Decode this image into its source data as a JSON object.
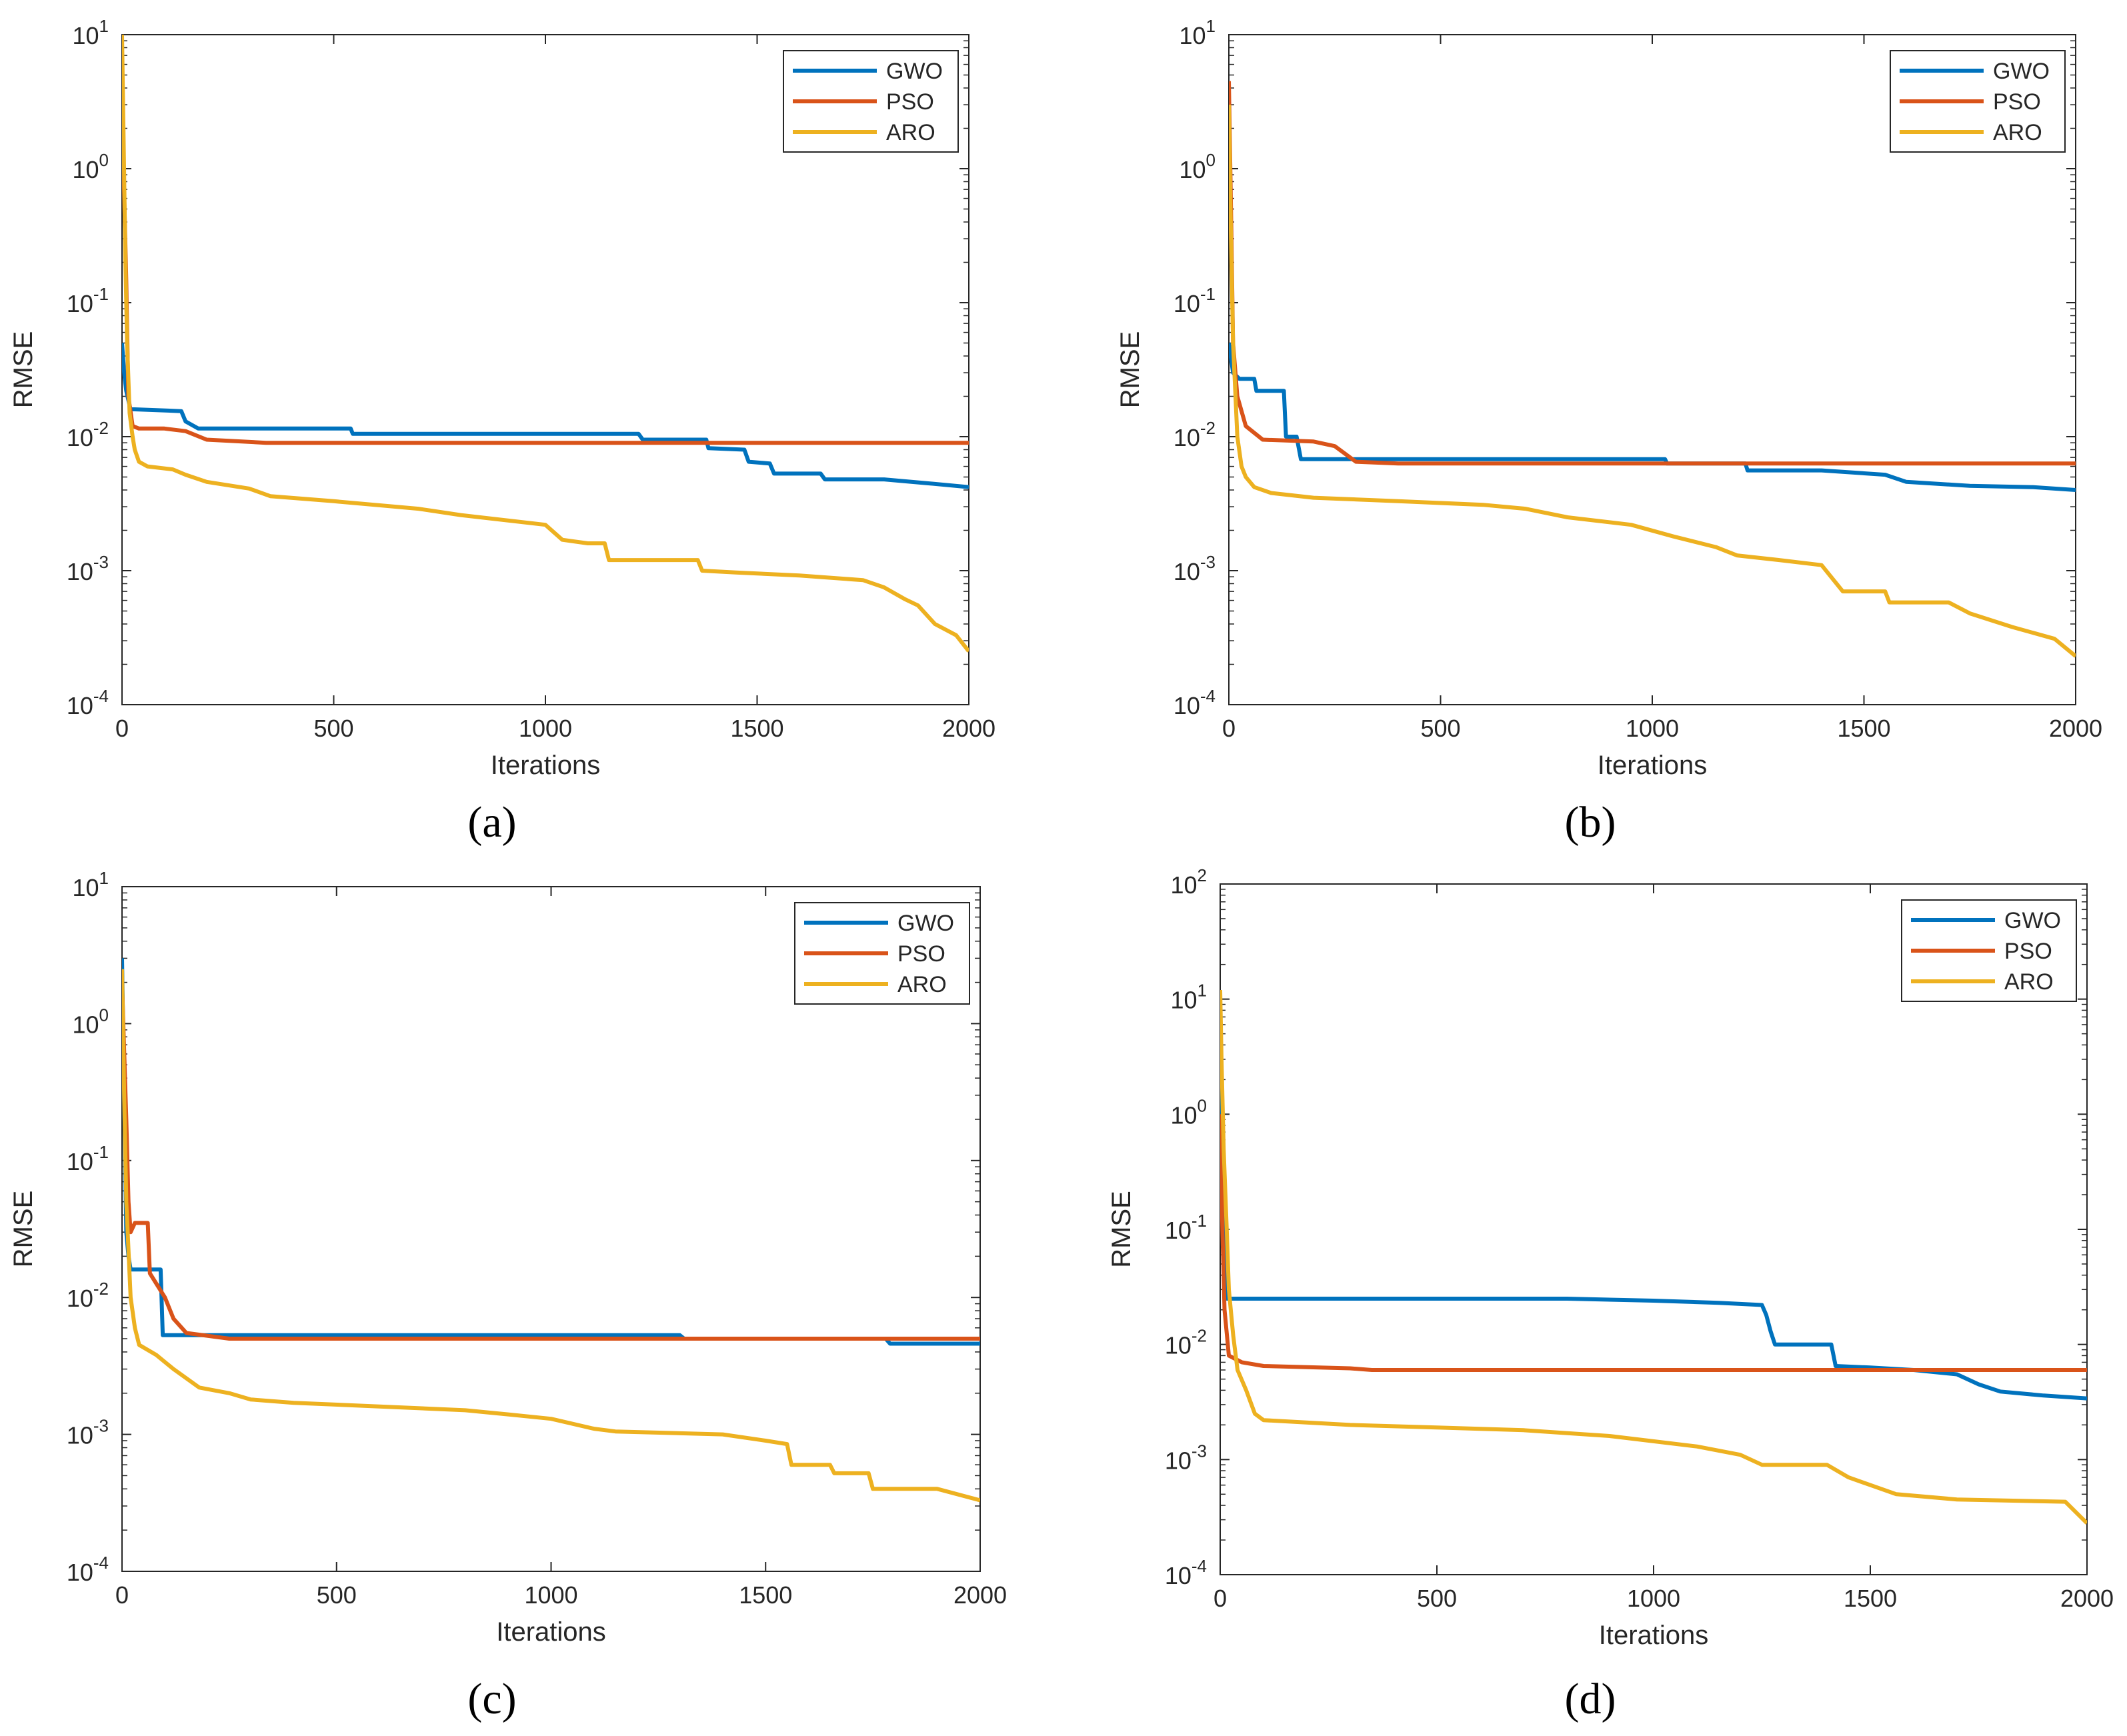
{
  "figure": {
    "panels": [
      "(a)",
      "(b)",
      "(c)",
      "(d)"
    ]
  },
  "colors": {
    "GWO": "#0072BD",
    "PSO": "#D95319",
    "ARO": "#EDB120",
    "axis": "#262626",
    "background": "#ffffff"
  },
  "chart_data": [
    {
      "panel": "(a)",
      "type": "line",
      "yscale": "log",
      "xlabel": "Iterations",
      "ylabel": "RMSE",
      "xlim": [
        0,
        2000
      ],
      "ylim_exp": [
        -4,
        1
      ],
      "xticks": [
        0,
        500,
        1000,
        1500,
        2000
      ],
      "yticks_exp": [
        -4,
        -3,
        -2,
        -1,
        0,
        1
      ],
      "legend": [
        "GWO",
        "PSO",
        "ARO"
      ],
      "legend_position": "top-right",
      "series": [
        {
          "name": "GWO",
          "points": [
            [
              0,
              0.05
            ],
            [
              5,
              0.03
            ],
            [
              10,
              0.022
            ],
            [
              20,
              0.016
            ],
            [
              30,
              0.016
            ],
            [
              140,
              0.0155
            ],
            [
              150,
              0.013
            ],
            [
              180,
              0.0115
            ],
            [
              540,
              0.0115
            ],
            [
              545,
              0.0105
            ],
            [
              1100,
              0.0105
            ],
            [
              1220,
              0.0105
            ],
            [
              1230,
              0.0095
            ],
            [
              1380,
              0.0095
            ],
            [
              1385,
              0.0082
            ],
            [
              1470,
              0.008
            ],
            [
              1480,
              0.0065
            ],
            [
              1530,
              0.0063
            ],
            [
              1540,
              0.0053
            ],
            [
              1650,
              0.0053
            ],
            [
              1660,
              0.0048
            ],
            [
              1800,
              0.0048
            ],
            [
              1900,
              0.0045
            ],
            [
              2000,
              0.0042
            ]
          ]
        },
        {
          "name": "PSO",
          "points": [
            [
              0,
              3.0
            ],
            [
              10,
              0.15
            ],
            [
              15,
              0.02
            ],
            [
              25,
              0.012
            ],
            [
              40,
              0.0115
            ],
            [
              100,
              0.0115
            ],
            [
              150,
              0.011
            ],
            [
              200,
              0.0095
            ],
            [
              340,
              0.009
            ],
            [
              1000,
              0.009
            ],
            [
              2000,
              0.009
            ]
          ]
        },
        {
          "name": "ARO",
          "points": [
            [
              0,
              10
            ],
            [
              4,
              1.5
            ],
            [
              8,
              0.2
            ],
            [
              12,
              0.05
            ],
            [
              18,
              0.015
            ],
            [
              25,
              0.01
            ],
            [
              30,
              0.008
            ],
            [
              40,
              0.0065
            ],
            [
              60,
              0.006
            ],
            [
              120,
              0.0057
            ],
            [
              150,
              0.0052
            ],
            [
              200,
              0.0046
            ],
            [
              300,
              0.0041
            ],
            [
              350,
              0.0036
            ],
            [
              500,
              0.0033
            ],
            [
              700,
              0.0029
            ],
            [
              800,
              0.0026
            ],
            [
              1000,
              0.0022
            ],
            [
              1040,
              0.0017
            ],
            [
              1100,
              0.0016
            ],
            [
              1140,
              0.0016
            ],
            [
              1150,
              0.0012
            ],
            [
              1300,
              0.0012
            ],
            [
              1360,
              0.0012
            ],
            [
              1370,
              0.001
            ],
            [
              1450,
              0.00097
            ],
            [
              1600,
              0.00092
            ],
            [
              1750,
              0.00085
            ],
            [
              1800,
              0.00075
            ],
            [
              1850,
              0.00061
            ],
            [
              1880,
              0.00055
            ],
            [
              1920,
              0.0004
            ],
            [
              1970,
              0.00033
            ],
            [
              2000,
              0.00025
            ]
          ]
        }
      ]
    },
    {
      "panel": "(b)",
      "type": "line",
      "yscale": "log",
      "xlabel": "Iterations",
      "ylabel": "RMSE",
      "xlim": [
        0,
        2000
      ],
      "ylim_exp": [
        -4,
        1
      ],
      "xticks": [
        0,
        500,
        1000,
        1500,
        2000
      ],
      "yticks_exp": [
        -4,
        -3,
        -2,
        -1,
        0,
        1
      ],
      "legend": [
        "GWO",
        "PSO",
        "ARO"
      ],
      "legend_position": "top-right",
      "series": [
        {
          "name": "GWO",
          "points": [
            [
              0,
              0.05
            ],
            [
              10,
              0.03
            ],
            [
              25,
              0.027
            ],
            [
              60,
              0.027
            ],
            [
              65,
              0.022
            ],
            [
              130,
              0.022
            ],
            [
              135,
              0.01
            ],
            [
              160,
              0.01
            ],
            [
              170,
              0.0068
            ],
            [
              1030,
              0.0068
            ],
            [
              1035,
              0.0063
            ],
            [
              1220,
              0.0063
            ],
            [
              1225,
              0.0056
            ],
            [
              1400,
              0.0056
            ],
            [
              1550,
              0.0052
            ],
            [
              1600,
              0.0046
            ],
            [
              1750,
              0.0043
            ],
            [
              1900,
              0.0042
            ],
            [
              2000,
              0.004
            ]
          ]
        },
        {
          "name": "PSO",
          "points": [
            [
              0,
              4.5
            ],
            [
              5,
              0.5
            ],
            [
              10,
              0.05
            ],
            [
              20,
              0.02
            ],
            [
              40,
              0.012
            ],
            [
              80,
              0.0095
            ],
            [
              200,
              0.0092
            ],
            [
              250,
              0.0085
            ],
            [
              300,
              0.0065
            ],
            [
              400,
              0.0063
            ],
            [
              1000,
              0.0063
            ],
            [
              2000,
              0.0063
            ]
          ]
        },
        {
          "name": "ARO",
          "points": [
            [
              0,
              3.0
            ],
            [
              5,
              0.3
            ],
            [
              10,
              0.05
            ],
            [
              20,
              0.01
            ],
            [
              30,
              0.006
            ],
            [
              40,
              0.005
            ],
            [
              60,
              0.0042
            ],
            [
              100,
              0.0038
            ],
            [
              200,
              0.0035
            ],
            [
              400,
              0.0033
            ],
            [
              600,
              0.0031
            ],
            [
              700,
              0.0029
            ],
            [
              800,
              0.0025
            ],
            [
              950,
              0.0022
            ],
            [
              1050,
              0.0018
            ],
            [
              1150,
              0.0015
            ],
            [
              1200,
              0.0013
            ],
            [
              1300,
              0.0012
            ],
            [
              1400,
              0.0011
            ],
            [
              1450,
              0.0007
            ],
            [
              1550,
              0.0007
            ],
            [
              1560,
              0.00058
            ],
            [
              1700,
              0.00058
            ],
            [
              1750,
              0.00048
            ],
            [
              1850,
              0.00038
            ],
            [
              1950,
              0.00031
            ],
            [
              2000,
              0.00023
            ]
          ]
        }
      ]
    },
    {
      "panel": "(c)",
      "type": "line",
      "yscale": "log",
      "xlabel": "Iterations",
      "ylabel": "RMSE",
      "xlim": [
        0,
        2000
      ],
      "ylim_exp": [
        -4,
        1
      ],
      "xticks": [
        0,
        500,
        1000,
        1500,
        2000
      ],
      "yticks_exp": [
        -4,
        -3,
        -2,
        -1,
        0,
        1
      ],
      "legend": [
        "GWO",
        "PSO",
        "ARO"
      ],
      "legend_position": "top-right",
      "series": [
        {
          "name": "GWO",
          "points": [
            [
              0,
              3.0
            ],
            [
              5,
              0.3
            ],
            [
              10,
              0.03
            ],
            [
              15,
              0.02
            ],
            [
              20,
              0.016
            ],
            [
              90,
              0.016
            ],
            [
              95,
              0.0053
            ],
            [
              1300,
              0.0053
            ],
            [
              1310,
              0.005
            ],
            [
              1780,
              0.005
            ],
            [
              1790,
              0.0046
            ],
            [
              2000,
              0.0046
            ]
          ]
        },
        {
          "name": "PSO",
          "points": [
            [
              0,
              2.0
            ],
            [
              10,
              0.2
            ],
            [
              15,
              0.05
            ],
            [
              20,
              0.03
            ],
            [
              30,
              0.035
            ],
            [
              60,
              0.035
            ],
            [
              65,
              0.015
            ],
            [
              100,
              0.01
            ],
            [
              120,
              0.007
            ],
            [
              150,
              0.0055
            ],
            [
              250,
              0.005
            ],
            [
              1000,
              0.005
            ],
            [
              2000,
              0.005
            ]
          ]
        },
        {
          "name": "ARO",
          "points": [
            [
              0,
              2.5
            ],
            [
              5,
              0.3
            ],
            [
              10,
              0.05
            ],
            [
              20,
              0.01
            ],
            [
              30,
              0.006
            ],
            [
              40,
              0.0045
            ],
            [
              80,
              0.0038
            ],
            [
              120,
              0.003
            ],
            [
              180,
              0.0022
            ],
            [
              250,
              0.002
            ],
            [
              300,
              0.0018
            ],
            [
              400,
              0.0017
            ],
            [
              600,
              0.0016
            ],
            [
              800,
              0.0015
            ],
            [
              900,
              0.0014
            ],
            [
              1000,
              0.0013
            ],
            [
              1100,
              0.0011
            ],
            [
              1150,
              0.00105
            ],
            [
              1400,
              0.001
            ],
            [
              1500,
              0.0009
            ],
            [
              1550,
              0.00085
            ],
            [
              1560,
              0.0006
            ],
            [
              1650,
              0.0006
            ],
            [
              1660,
              0.00052
            ],
            [
              1740,
              0.00052
            ],
            [
              1750,
              0.0004
            ],
            [
              1900,
              0.0004
            ],
            [
              2000,
              0.00033
            ]
          ]
        }
      ]
    },
    {
      "panel": "(d)",
      "type": "line",
      "yscale": "log",
      "xlabel": "Iterations",
      "ylabel": "RMSE",
      "xlim": [
        0,
        2000
      ],
      "ylim_exp": [
        -4,
        2
      ],
      "xticks": [
        0,
        500,
        1000,
        1500,
        2000
      ],
      "yticks_exp": [
        -4,
        -3,
        -2,
        -1,
        0,
        1,
        2
      ],
      "legend": [
        "GWO",
        "PSO",
        "ARO"
      ],
      "legend_position": "top-right",
      "series": [
        {
          "name": "GWO",
          "points": [
            [
              0,
              3.0
            ],
            [
              5,
              0.3
            ],
            [
              10,
              0.05
            ],
            [
              15,
              0.025
            ],
            [
              800,
              0.025
            ],
            [
              1000,
              0.024
            ],
            [
              1150,
              0.023
            ],
            [
              1250,
              0.022
            ],
            [
              1260,
              0.018
            ],
            [
              1270,
              0.013
            ],
            [
              1280,
              0.01
            ],
            [
              1410,
              0.01
            ],
            [
              1420,
              0.0065
            ],
            [
              1500,
              0.0063
            ],
            [
              1600,
              0.006
            ],
            [
              1700,
              0.0055
            ],
            [
              1750,
              0.0045
            ],
            [
              1800,
              0.0039
            ],
            [
              1900,
              0.0036
            ],
            [
              2000,
              0.0034
            ]
          ]
        },
        {
          "name": "PSO",
          "points": [
            [
              0,
              1.0
            ],
            [
              5,
              0.1
            ],
            [
              10,
              0.02
            ],
            [
              20,
              0.008
            ],
            [
              50,
              0.007
            ],
            [
              100,
              0.0065
            ],
            [
              300,
              0.0062
            ],
            [
              350,
              0.006
            ],
            [
              1000,
              0.006
            ],
            [
              2000,
              0.006
            ]
          ]
        },
        {
          "name": "ARO",
          "points": [
            [
              0,
              12
            ],
            [
              3,
              3.0
            ],
            [
              8,
              0.5
            ],
            [
              15,
              0.1
            ],
            [
              20,
              0.03
            ],
            [
              30,
              0.012
            ],
            [
              40,
              0.006
            ],
            [
              60,
              0.004
            ],
            [
              80,
              0.0025
            ],
            [
              100,
              0.0022
            ],
            [
              300,
              0.002
            ],
            [
              500,
              0.0019
            ],
            [
              700,
              0.0018
            ],
            [
              900,
              0.0016
            ],
            [
              1100,
              0.0013
            ],
            [
              1200,
              0.0011
            ],
            [
              1250,
              0.0009
            ],
            [
              1400,
              0.0009
            ],
            [
              1450,
              0.0007
            ],
            [
              1500,
              0.0006
            ],
            [
              1560,
              0.0005
            ],
            [
              1700,
              0.00045
            ],
            [
              1950,
              0.00043
            ],
            [
              2000,
              0.00028
            ]
          ]
        }
      ]
    }
  ]
}
